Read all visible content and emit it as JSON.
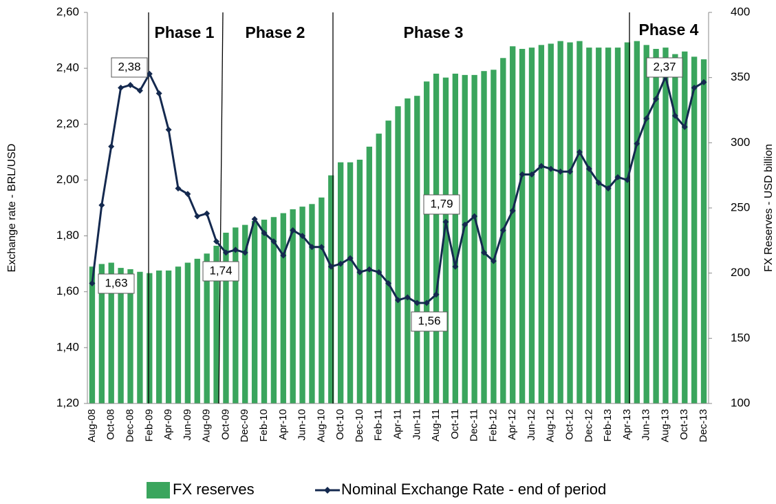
{
  "chart_data": {
    "type": "combo",
    "categories": [
      "Aug-08",
      null,
      "Oct-08",
      null,
      "Dec-08",
      null,
      "Feb-09",
      null,
      "Apr-09",
      null,
      "Jun-09",
      null,
      "Aug-09",
      null,
      "Oct-09",
      null,
      "Dec-09",
      null,
      "Feb-10",
      null,
      "Apr-10",
      null,
      "Jun-10",
      null,
      "Aug-10",
      null,
      "Oct-10",
      null,
      "Dec-10",
      null,
      "Feb-11",
      null,
      "Apr-11",
      null,
      "Jun-11",
      null,
      "Aug-11",
      null,
      "Oct-11",
      null,
      "Dec-11",
      null,
      "Feb-12",
      null,
      "Apr-12",
      null,
      "Jun-12",
      null,
      "Aug-12",
      null,
      "Oct-12",
      null,
      "Dec-12",
      null,
      "Feb-13",
      null,
      "Apr-13",
      null,
      "Jun-13",
      null,
      "Aug-13",
      null,
      "Oct-13",
      null,
      "Dec-13"
    ],
    "series": [
      {
        "name": "FX reserves",
        "type": "bar",
        "axis": "y2",
        "color": "#3aa55d",
        "values": [
          205,
          207,
          208,
          204,
          203,
          201,
          200,
          202,
          202,
          205,
          208,
          211,
          215,
          221,
          231,
          235,
          237,
          240,
          241,
          243,
          246,
          249,
          251,
          253,
          258,
          275,
          285,
          285,
          287,
          297,
          307,
          317,
          328,
          334,
          336,
          347,
          353,
          350,
          353,
          352,
          352,
          355,
          356,
          365,
          374,
          372,
          373,
          375,
          376,
          378,
          377,
          378,
          373,
          373,
          373,
          373,
          377,
          378,
          375,
          372,
          373,
          368,
          370,
          366,
          364
        ]
      },
      {
        "name": "Nominal Exchange Rate - end of period",
        "type": "line",
        "color": "#14294f",
        "values": [
          1.63,
          1.91,
          2.12,
          2.33,
          2.34,
          2.32,
          2.38,
          2.31,
          2.18,
          1.97,
          1.95,
          1.87,
          1.88,
          1.78,
          1.74,
          1.75,
          1.74,
          1.86,
          1.81,
          1.78,
          1.73,
          1.82,
          1.8,
          1.76,
          1.76,
          1.69,
          1.7,
          1.72,
          1.67,
          1.68,
          1.67,
          1.63,
          1.57,
          1.58,
          1.56,
          1.56,
          1.59,
          1.85,
          1.69,
          1.84,
          1.87,
          1.74,
          1.71,
          1.82,
          1.89,
          2.02,
          2.02,
          2.05,
          2.04,
          2.03,
          2.03,
          2.1,
          2.04,
          1.99,
          1.97,
          2.01,
          2.0,
          2.13,
          2.22,
          2.29,
          2.37,
          2.23,
          2.19,
          2.33,
          2.35
        ]
      }
    ],
    "ylabel": "Exchange rate - BRL/USD",
    "y2label": "FX Reserves - USD billion",
    "ylim": [
      1.2,
      2.6
    ],
    "yticks": [
      {
        "value": 1.2,
        "label": "1,20"
      },
      {
        "value": 1.4,
        "label": "1,40"
      },
      {
        "value": 1.6,
        "label": "1,60"
      },
      {
        "value": 1.8,
        "label": "1,80"
      },
      {
        "value": 2.0,
        "label": "2,00"
      },
      {
        "value": 2.2,
        "label": "2,20"
      },
      {
        "value": 2.4,
        "label": "2,40"
      },
      {
        "value": 2.6,
        "label": "2,60"
      }
    ],
    "y2lim": [
      100,
      400
    ],
    "y2ticks": [
      100,
      150,
      200,
      250,
      300,
      350,
      400
    ],
    "phases": [
      "Phase 1",
      "Phase 2",
      "Phase 3",
      "Phase 4"
    ],
    "annotations": [
      "1,63",
      "2,38",
      "1,74",
      "1,79",
      "1,56",
      "2,37"
    ],
    "legend": "bottom"
  }
}
